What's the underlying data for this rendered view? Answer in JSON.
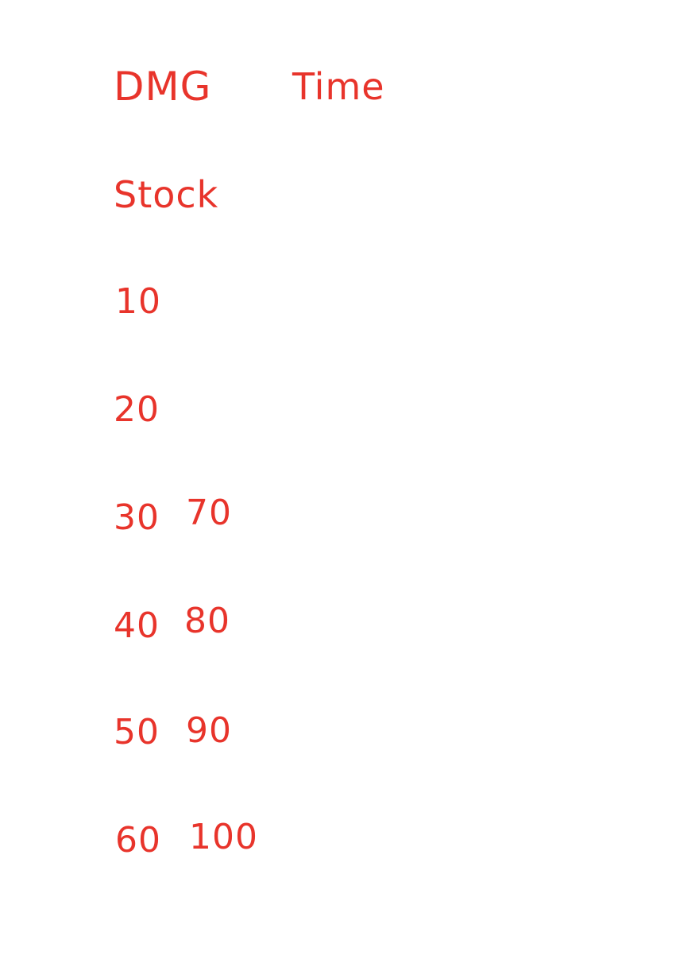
{
  "headings": {
    "dmg": "DMG",
    "time": "Time",
    "stock": "Stock"
  },
  "column_left": [
    "10",
    "20",
    "30",
    "40",
    "50",
    "60"
  ],
  "column_right": [
    "70",
    "80",
    "90",
    "100"
  ],
  "colors": {
    "ink": "#e8342b",
    "background": "#ffffff"
  }
}
